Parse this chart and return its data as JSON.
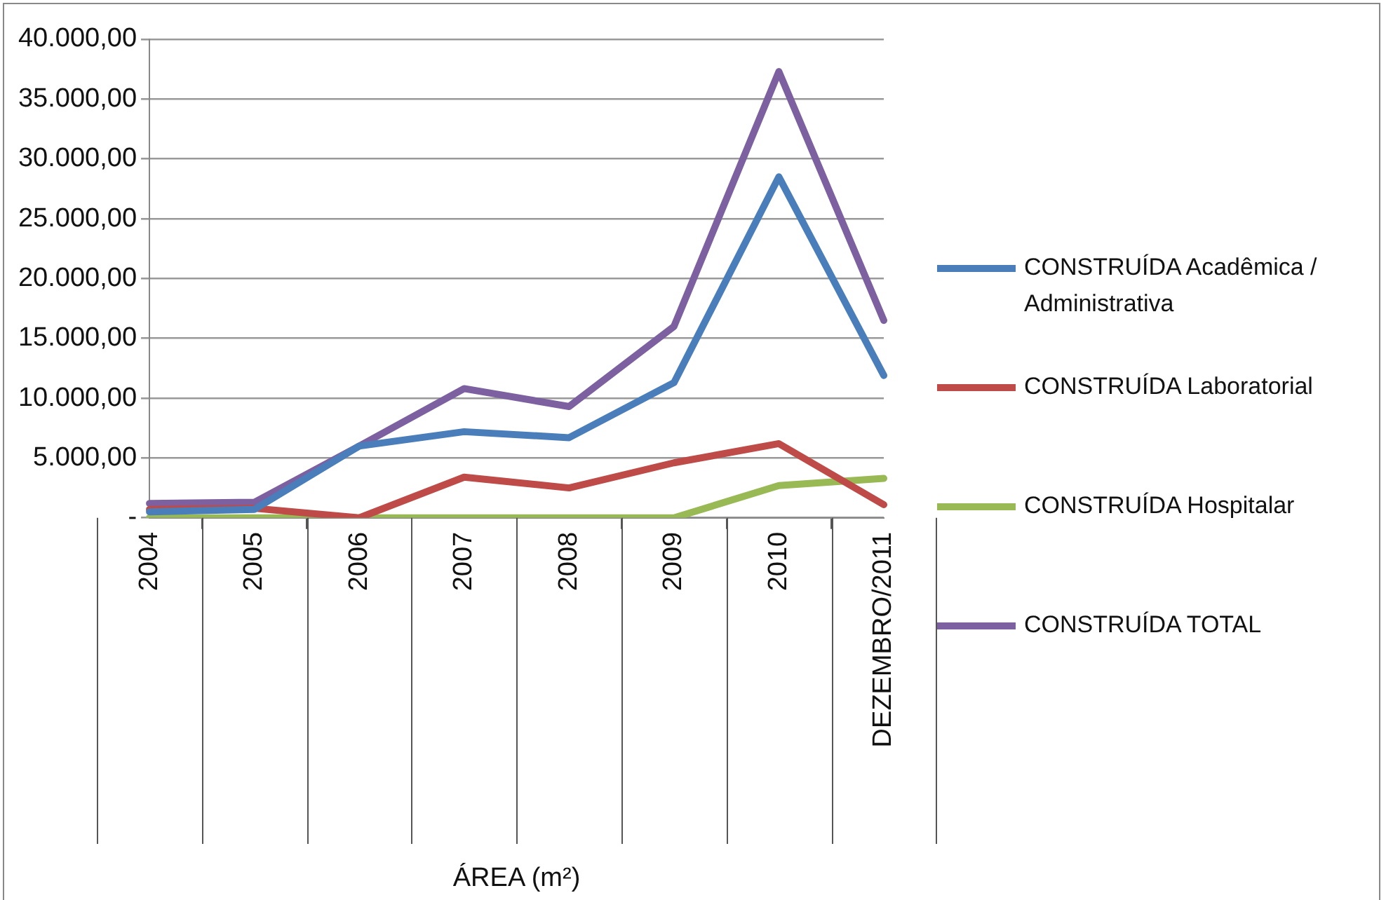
{
  "chart_data": {
    "type": "line",
    "xlabel": "ÁREA (m²)",
    "categories": [
      "2004",
      "2005",
      "2006",
      "2007",
      "2008",
      "2009",
      "2010",
      "DEZEMBRO/2011"
    ],
    "series": [
      {
        "name": "CONSTRUÍDA Acadêmica / Administrativa",
        "color": "#4a7ebb",
        "values": [
          500,
          700,
          6000,
          7200,
          6700,
          11300,
          28500,
          11900
        ]
      },
      {
        "name": "CONSTRUÍDA Laboratorial",
        "color": "#be4b48",
        "values": [
          700,
          800,
          0,
          3400,
          2500,
          4600,
          6200,
          1100
        ]
      },
      {
        "name": "CONSTRUÍDA Hospitalar",
        "color": "#98b954",
        "values": [
          0,
          0,
          0,
          0,
          0,
          0,
          2700,
          3300
        ]
      },
      {
        "name": "CONSTRUÍDA TOTAL",
        "color": "#7d60a0",
        "values": [
          1200,
          1300,
          6000,
          10800,
          9300,
          16000,
          37300,
          16500
        ]
      }
    ],
    "ylim": [
      0,
      40000
    ],
    "yticks": [
      {
        "value": 0,
        "label": "-"
      },
      {
        "value": 5000,
        "label": "5.000,00"
      },
      {
        "value": 10000,
        "label": "10.000,00"
      },
      {
        "value": 15000,
        "label": "15.000,00"
      },
      {
        "value": 20000,
        "label": "20.000,00"
      },
      {
        "value": 25000,
        "label": "25.000,00"
      },
      {
        "value": 30000,
        "label": "30.000,00"
      },
      {
        "value": 35000,
        "label": "35.000,00"
      },
      {
        "value": 40000,
        "label": "40.000,00"
      }
    ],
    "grid": "y",
    "legend": "right",
    "marker": "none",
    "line_style": "solid"
  }
}
